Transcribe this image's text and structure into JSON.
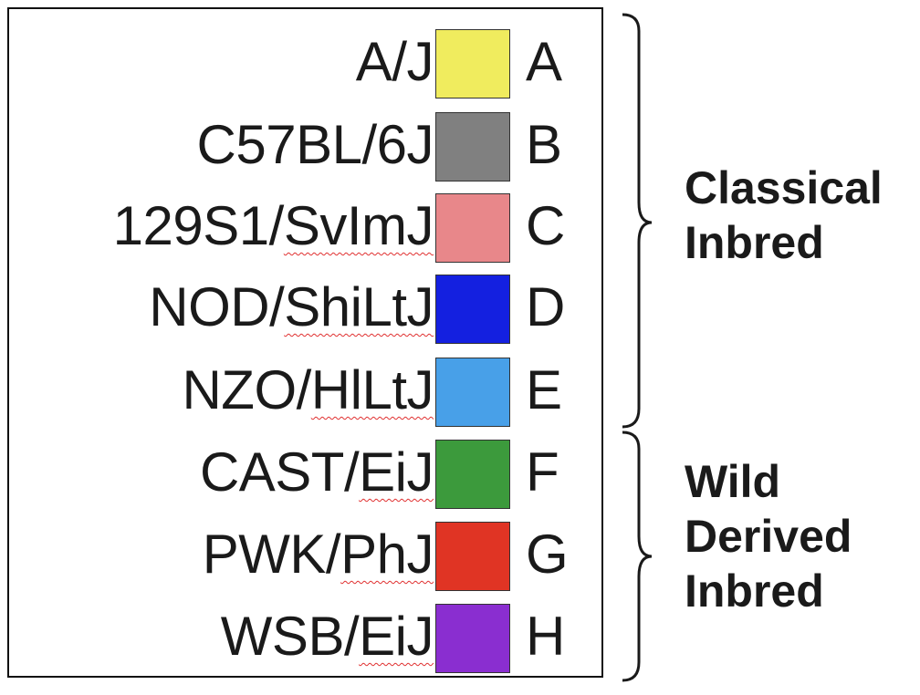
{
  "strains": [
    {
      "name": "A/J",
      "prefix": "A/J",
      "suffix": "",
      "code": "A",
      "color": "#f0ec5e"
    },
    {
      "name": "C57BL/6J",
      "prefix": "C57BL/6J",
      "suffix": "",
      "code": "B",
      "color": "#808080"
    },
    {
      "name": "129S1/SvImJ",
      "prefix": "129S1/",
      "suffix": "SvImJ",
      "code": "C",
      "color": "#e8878a"
    },
    {
      "name": "NOD/ShiLtJ",
      "prefix": "NOD/",
      "suffix": "ShiLtJ",
      "code": "D",
      "color": "#1420e0"
    },
    {
      "name": "NZO/HlLtJ",
      "prefix": "NZO/",
      "suffix": "HlLtJ",
      "code": "E",
      "color": "#48a0e8"
    },
    {
      "name": "CAST/EiJ",
      "prefix": "CAST/",
      "suffix": "EiJ",
      "code": "F",
      "color": "#3c9a3c"
    },
    {
      "name": "PWK/PhJ",
      "prefix": "PWK/",
      "suffix": "PhJ",
      "code": "G",
      "color": "#e03424"
    },
    {
      "name": "WSB/EiJ",
      "prefix": "WSB/",
      "suffix": "EiJ",
      "code": "H",
      "color": "#8a2ed0"
    }
  ],
  "groups": [
    {
      "line1": "Classical",
      "line2": "Inbred",
      "line3": ""
    },
    {
      "line1": "Wild",
      "line2": "Derived",
      "line3": "Inbred"
    }
  ]
}
